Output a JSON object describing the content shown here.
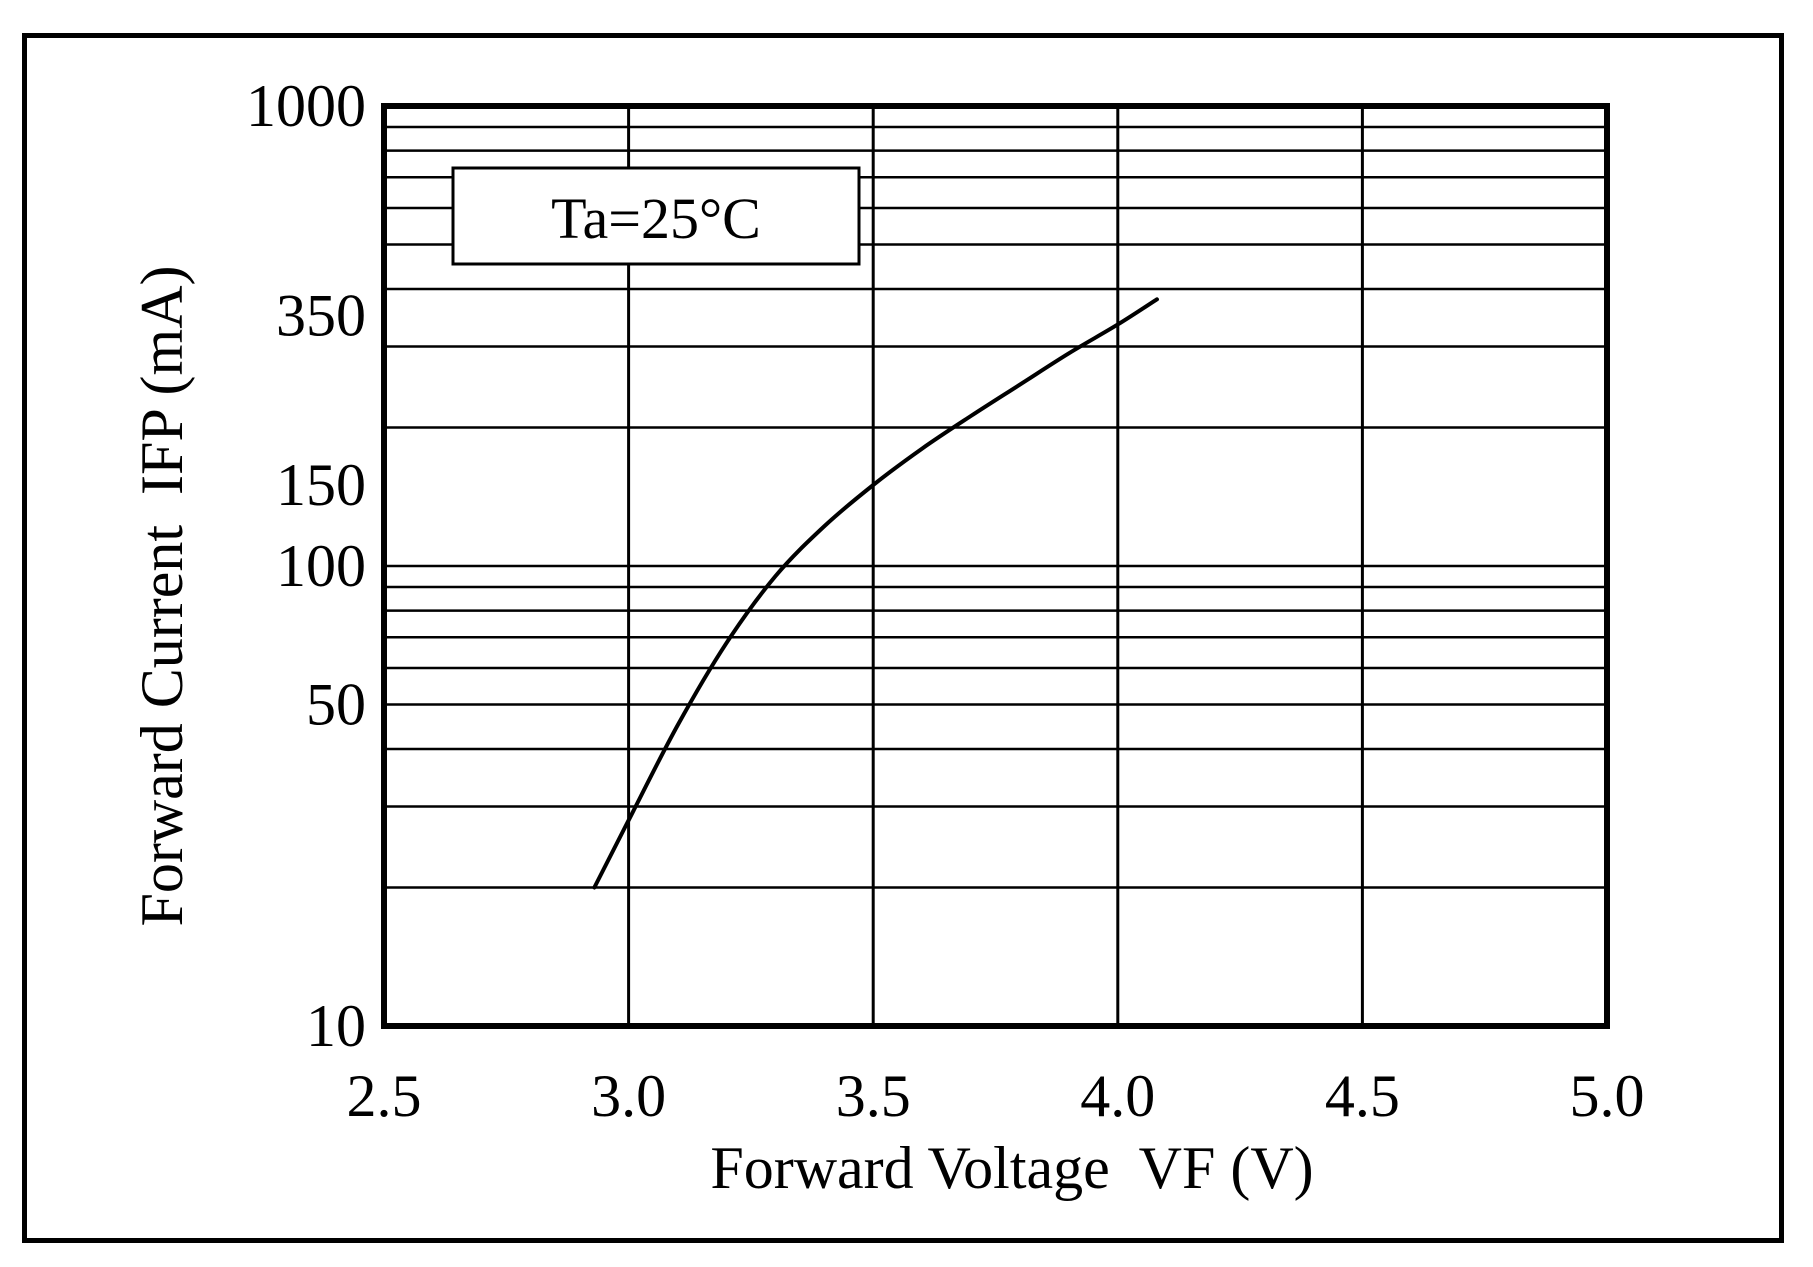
{
  "chart_data": {
    "type": "line",
    "title": "",
    "xlabel": "Forward Voltage  VF (V)",
    "ylabel": "Forward Current  IFP (mA)",
    "xlim": [
      2.5,
      5.0
    ],
    "ylim": [
      10,
      1000
    ],
    "y_scale": "log",
    "grid": true,
    "x_ticks": [
      "2.5",
      "3.0",
      "3.5",
      "4.0",
      "4.5",
      "5.0"
    ],
    "x_tick_values": [
      2.5,
      3.0,
      3.5,
      4.0,
      4.5,
      5.0
    ],
    "y_ticks": [
      "1000",
      "350",
      "150",
      "100",
      "50",
      "10"
    ],
    "y_tick_values": [
      1000,
      350,
      150,
      100,
      50,
      10
    ],
    "y_gridlines": [
      20,
      30,
      40,
      50,
      60,
      70,
      80,
      90,
      100,
      200,
      300,
      400,
      500,
      600,
      700,
      800,
      900,
      1000
    ],
    "annotation": "Ta=25°C",
    "series": [
      {
        "color": "#000000",
        "x": [
          2.93,
          3.0,
          3.1,
          3.2,
          3.3,
          3.4,
          3.5,
          3.6,
          3.7,
          3.8,
          3.9,
          4.0,
          4.08
        ],
        "y": [
          20,
          28,
          45,
          68,
          95,
          122,
          150,
          180,
          212,
          248,
          290,
          335,
          380
        ]
      }
    ]
  }
}
